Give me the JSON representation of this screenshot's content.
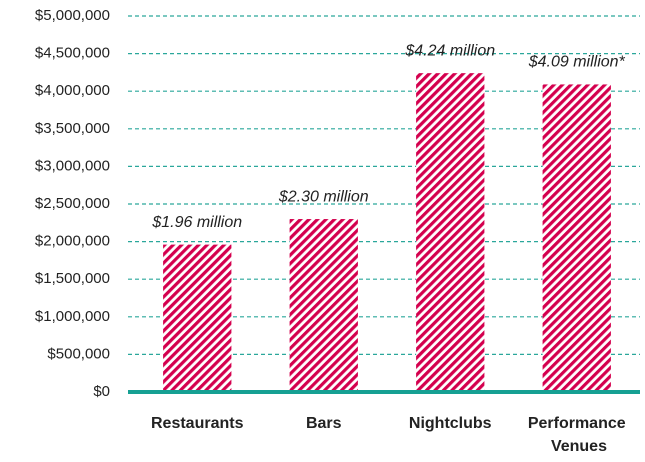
{
  "chart_data": {
    "type": "bar",
    "categories": [
      "Restaurants",
      "Bars",
      "Nightclubs",
      "Performance Venues"
    ],
    "values": [
      1960000,
      2300000,
      4240000,
      4090000
    ],
    "value_labels": [
      "$1.96 million",
      "$2.30 million",
      "$4.24 million",
      "$4.09 million*"
    ],
    "color": "#d4004e",
    "ylim": [
      0,
      5000000
    ],
    "yticks": [
      {
        "value": 0,
        "label": "$0"
      },
      {
        "value": 500000,
        "label": "$500,000"
      },
      {
        "value": 1000000,
        "label": "$1,000,000"
      },
      {
        "value": 1500000,
        "label": "$1,500,000"
      },
      {
        "value": 2000000,
        "label": "$2,000,000"
      },
      {
        "value": 2500000,
        "label": "$2,500,000"
      },
      {
        "value": 3000000,
        "label": "$3,000,000"
      },
      {
        "value": 3500000,
        "label": "$3,500,000"
      },
      {
        "value": 4000000,
        "label": "$4,000,000"
      },
      {
        "value": 4500000,
        "label": "$4,500,000"
      },
      {
        "value": 5000000,
        "label": "$5,000,000"
      }
    ],
    "grid": true
  }
}
